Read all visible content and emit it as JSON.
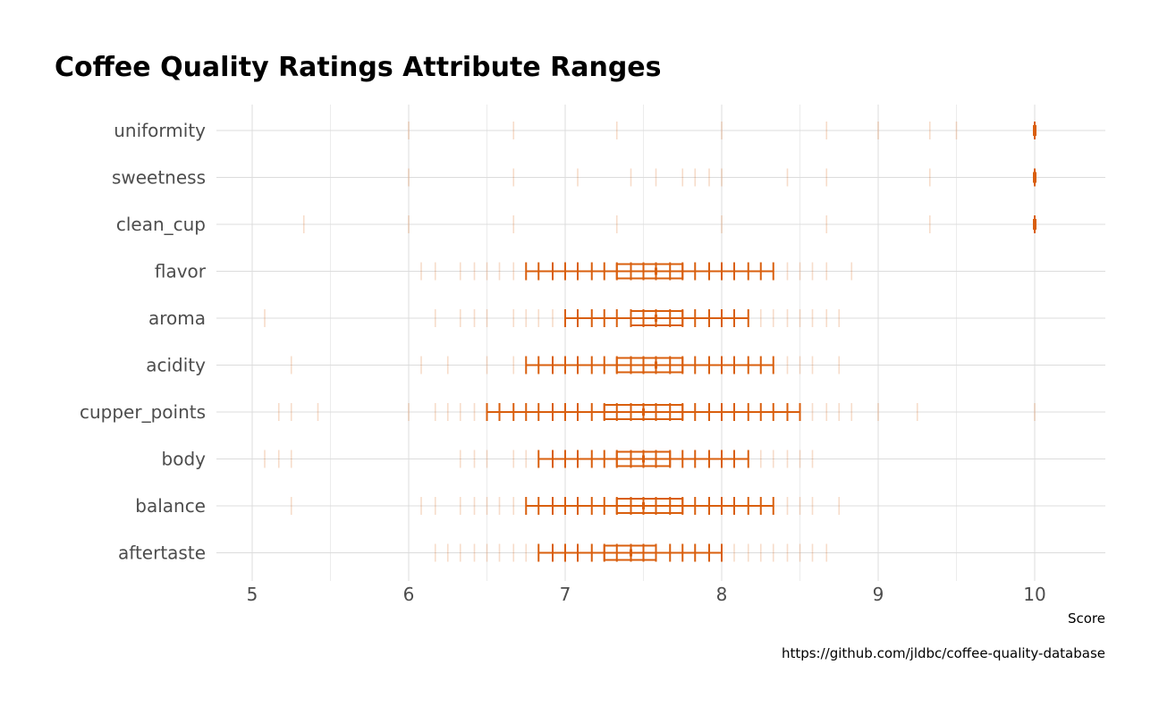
{
  "chart_data": {
    "type": "error-bar range plot",
    "title": "Coffee Quality Ratings Attribute Ranges",
    "xlabel": "Score",
    "caption": "https://github.com/jldbc/coffee-quality-database",
    "xlim": [
      4.75,
      10.45
    ],
    "xticks": [
      "5",
      "6",
      "7",
      "8",
      "9",
      "10"
    ],
    "xtick_values": [
      5,
      6,
      7,
      8,
      9,
      10
    ],
    "color": "#d95f0e",
    "grid": true,
    "categories": [
      "uniformity",
      "sweetness",
      "clean_cup",
      "flavor",
      "aroma",
      "acidity",
      "cupper_points",
      "body",
      "balance",
      "aftertaste"
    ],
    "series": [
      {
        "category": "uniformity",
        "observed_scores": [
          6,
          6.67,
          7.33,
          8,
          8.67,
          9,
          9.33,
          9.5,
          10
        ],
        "main_range": [
          10,
          10
        ],
        "inner_range": [
          10,
          10
        ],
        "median": 10
      },
      {
        "category": "sweetness",
        "observed_scores": [
          6,
          6.67,
          7.08,
          7.42,
          7.58,
          7.75,
          7.83,
          7.92,
          8,
          8.42,
          8.67,
          9.33,
          10
        ],
        "main_range": [
          10,
          10
        ],
        "inner_range": [
          10,
          10
        ],
        "median": 10
      },
      {
        "category": "clean_cup",
        "observed_scores": [
          5.33,
          6,
          6.67,
          7.33,
          8,
          8.67,
          9.33,
          10
        ],
        "main_range": [
          10,
          10
        ],
        "inner_range": [
          10,
          10
        ],
        "median": 10
      },
      {
        "category": "flavor",
        "observed_scores": [
          6.08,
          6.17,
          6.33,
          6.42,
          6.5,
          6.58,
          6.67,
          6.75,
          6.83,
          6.92,
          7,
          7.08,
          7.17,
          7.25,
          7.33,
          7.42,
          7.5,
          7.58,
          7.67,
          7.75,
          7.83,
          7.92,
          8,
          8.08,
          8.17,
          8.25,
          8.33,
          8.42,
          8.5,
          8.58,
          8.67,
          8.83
        ],
        "main_range": [
          6.75,
          8.33
        ],
        "inner_range": [
          7.33,
          7.75
        ],
        "median": 7.58
      },
      {
        "category": "aroma",
        "observed_scores": [
          5.08,
          6.17,
          6.33,
          6.42,
          6.5,
          6.67,
          6.75,
          6.83,
          6.92,
          7,
          7.08,
          7.17,
          7.25,
          7.33,
          7.42,
          7.5,
          7.58,
          7.67,
          7.75,
          7.83,
          7.92,
          8,
          8.08,
          8.17,
          8.25,
          8.33,
          8.42,
          8.5,
          8.58,
          8.67,
          8.75
        ],
        "main_range": [
          7,
          8.17
        ],
        "inner_range": [
          7.42,
          7.75
        ],
        "median": 7.58
      },
      {
        "category": "acidity",
        "observed_scores": [
          5.25,
          6.08,
          6.25,
          6.5,
          6.67,
          6.75,
          6.83,
          6.92,
          7,
          7.08,
          7.17,
          7.25,
          7.33,
          7.42,
          7.5,
          7.58,
          7.67,
          7.75,
          7.83,
          7.92,
          8,
          8.08,
          8.17,
          8.25,
          8.33,
          8.42,
          8.5,
          8.58,
          8.75
        ],
        "main_range": [
          6.75,
          8.33
        ],
        "inner_range": [
          7.33,
          7.75
        ],
        "median": 7.58
      },
      {
        "category": "cupper_points",
        "observed_scores": [
          5.17,
          5.25,
          5.42,
          6,
          6.17,
          6.25,
          6.33,
          6.42,
          6.5,
          6.58,
          6.67,
          6.75,
          6.83,
          6.92,
          7,
          7.08,
          7.17,
          7.25,
          7.33,
          7.42,
          7.5,
          7.58,
          7.67,
          7.75,
          7.83,
          7.92,
          8,
          8.08,
          8.17,
          8.25,
          8.33,
          8.42,
          8.5,
          8.58,
          8.67,
          8.75,
          8.83,
          9,
          9.25,
          10
        ],
        "main_range": [
          6.5,
          8.5
        ],
        "inner_range": [
          7.25,
          7.75
        ],
        "median": 7.5
      },
      {
        "category": "body",
        "observed_scores": [
          5.08,
          5.17,
          5.25,
          6.33,
          6.42,
          6.5,
          6.67,
          6.75,
          6.83,
          6.92,
          7,
          7.08,
          7.17,
          7.25,
          7.33,
          7.42,
          7.5,
          7.58,
          7.67,
          7.75,
          7.83,
          7.92,
          8,
          8.08,
          8.17,
          8.25,
          8.33,
          8.42,
          8.5,
          8.58
        ],
        "main_range": [
          6.83,
          8.17
        ],
        "inner_range": [
          7.33,
          7.67
        ],
        "median": 7.5
      },
      {
        "category": "balance",
        "observed_scores": [
          5.25,
          6.08,
          6.17,
          6.33,
          6.42,
          6.5,
          6.58,
          6.67,
          6.75,
          6.83,
          6.92,
          7,
          7.08,
          7.17,
          7.25,
          7.33,
          7.42,
          7.5,
          7.58,
          7.67,
          7.75,
          7.83,
          7.92,
          8,
          8.08,
          8.17,
          8.25,
          8.33,
          8.42,
          8.5,
          8.58,
          8.75
        ],
        "main_range": [
          6.75,
          8.33
        ],
        "inner_range": [
          7.33,
          7.75
        ],
        "median": 7.5
      },
      {
        "category": "aftertaste",
        "observed_scores": [
          6.17,
          6.25,
          6.33,
          6.42,
          6.5,
          6.58,
          6.67,
          6.75,
          6.83,
          6.92,
          7,
          7.08,
          7.17,
          7.25,
          7.33,
          7.42,
          7.5,
          7.58,
          7.67,
          7.75,
          7.83,
          7.92,
          8,
          8.08,
          8.17,
          8.25,
          8.33,
          8.42,
          8.5,
          8.58,
          8.67
        ],
        "main_range": [
          6.83,
          8
        ],
        "inner_range": [
          7.25,
          7.58
        ],
        "median": 7.42
      }
    ]
  }
}
